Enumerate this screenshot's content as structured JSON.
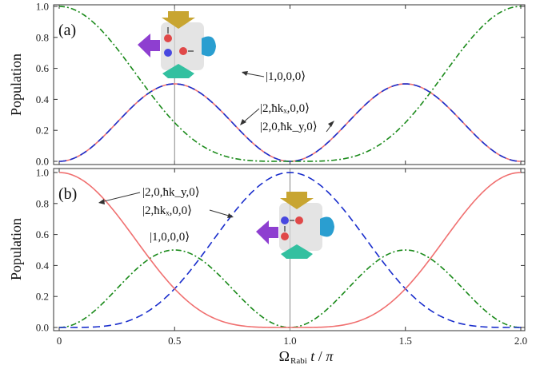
{
  "chart_data": [
    {
      "type": "line",
      "panel_label": "(a)",
      "ylabel": "Population",
      "xlim": [
        0,
        2
      ],
      "ylim": [
        0,
        1
      ],
      "x_ticks": [
        "0",
        "0.5",
        "1.0",
        "1.5",
        "2.0"
      ],
      "y_ticks": [
        "0.0",
        "0.2",
        "0.4",
        "0.6",
        "0.8",
        "1.0"
      ],
      "vertical_marker_x": 0.5,
      "series": [
        {
          "name": "|1,0,0,0⟩",
          "style": "dash-dot",
          "color": "#1a8a1a",
          "formula": "cos^4(pi*x/2)",
          "x": [
            0,
            0.25,
            0.5,
            0.75,
            1.0,
            1.25,
            1.5,
            1.75,
            2.0
          ],
          "values": [
            1.0,
            0.729,
            0.25,
            0.021,
            0.0,
            0.021,
            0.25,
            0.729,
            1.0
          ]
        },
        {
          "name": "|2,ħkₓ,0,0⟩",
          "style": "dashed",
          "color": "#1a2ecc",
          "formula": "sin^2(pi*x)/2",
          "x": [
            0,
            0.25,
            0.5,
            0.75,
            1.0,
            1.25,
            1.5,
            1.75,
            2.0
          ],
          "values": [
            0,
            0.25,
            0.5,
            0.25,
            0,
            0.25,
            0.5,
            0.25,
            0
          ]
        },
        {
          "name": "|2,0,ħk_y,0⟩",
          "style": "solid",
          "color": "#f07070",
          "formula": "sin^2(pi*x)/2",
          "x": [
            0,
            0.25,
            0.5,
            0.75,
            1.0,
            1.25,
            1.5,
            1.75,
            2.0
          ],
          "values": [
            0,
            0.25,
            0.5,
            0.25,
            0,
            0.25,
            0.5,
            0.25,
            0
          ]
        }
      ],
      "annotations": [
        {
          "text": "|1,0,0,0⟩",
          "series": 0
        },
        {
          "text": "|2,ħkₓ,0,0⟩",
          "series": 1
        },
        {
          "text": "|2,0,ħk_y,0⟩",
          "series": 2
        }
      ]
    },
    {
      "type": "line",
      "panel_label": "(b)",
      "ylabel": "Population",
      "xlabel": "Ω_Rabi t / π",
      "xlim": [
        0,
        2
      ],
      "ylim": [
        0,
        1
      ],
      "x_ticks": [
        "0",
        "0.5",
        "1.0",
        "1.5",
        "2.0"
      ],
      "y_ticks": [
        "0.0",
        "0.2",
        "0.4",
        "0.6",
        "0.8",
        "1.0"
      ],
      "vertical_marker_x": 1.0,
      "series": [
        {
          "name": "|2,0,ħk_y,0⟩",
          "style": "solid",
          "color": "#f07070",
          "formula": "cos^4(pi*x/2)",
          "x": [
            0,
            0.25,
            0.5,
            0.75,
            1.0,
            1.25,
            1.5,
            1.75,
            2.0
          ],
          "values": [
            1.0,
            0.729,
            0.25,
            0.021,
            0.0,
            0.021,
            0.25,
            0.729,
            1.0
          ]
        },
        {
          "name": "|2,ħkₓ,0,0⟩",
          "style": "dashed",
          "color": "#1a2ecc",
          "formula": "sin^4(pi*x/2)",
          "x": [
            0,
            0.25,
            0.5,
            0.75,
            1.0,
            1.25,
            1.5,
            1.75,
            2.0
          ],
          "values": [
            0,
            0.021,
            0.25,
            0.729,
            1.0,
            0.729,
            0.25,
            0.021,
            0
          ]
        },
        {
          "name": "|1,0,0,0⟩",
          "style": "dash-dot",
          "color": "#1a8a1a",
          "formula": "sin^2(pi*x)/2",
          "x": [
            0,
            0.25,
            0.5,
            0.75,
            1.0,
            1.25,
            1.5,
            1.75,
            2.0
          ],
          "values": [
            0,
            0.25,
            0.5,
            0.25,
            0,
            0.25,
            0.5,
            0.25,
            0
          ]
        }
      ],
      "annotations": [
        {
          "text": "|2,0,ħk_y,0⟩",
          "series": 0
        },
        {
          "text": "|2,ħkₓ,0,0⟩",
          "series": 1
        },
        {
          "text": "|1,0,0,0⟩",
          "series": 2
        }
      ]
    }
  ],
  "icons": {
    "schematic": "atom-laser-cross-schematic-icon",
    "laser_colors": [
      "#8e3fd0",
      "#c8a531",
      "#2a9ed0",
      "#33c0a0"
    ],
    "atom_colors": [
      "#e04848",
      "#4848e0"
    ]
  }
}
